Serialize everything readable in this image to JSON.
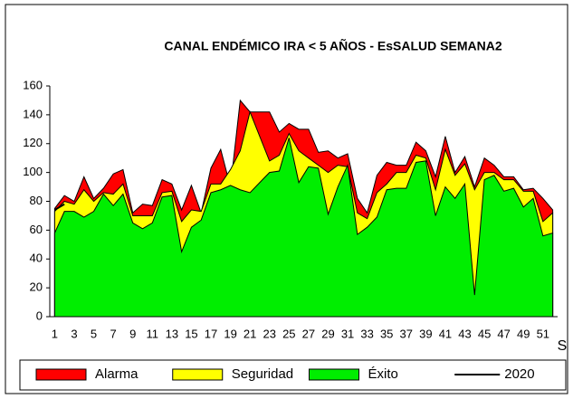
{
  "chart_data": {
    "type": "area",
    "title": "CANAL ENDÉMICO IRA < 5 AÑOS - EsSALUD SEMANA2",
    "x_label": "S",
    "categories": [
      1,
      null,
      3,
      null,
      5,
      null,
      7,
      null,
      9,
      null,
      11,
      null,
      13,
      null,
      15,
      null,
      17,
      null,
      19,
      null,
      21,
      null,
      23,
      null,
      25,
      null,
      27,
      null,
      29,
      null,
      31,
      null,
      33,
      null,
      35,
      null,
      37,
      null,
      39,
      null,
      41,
      null,
      43,
      null,
      45,
      null,
      47,
      null,
      49,
      null,
      51,
      null
    ],
    "ylim": [
      0,
      160
    ],
    "yticks": [
      0,
      20,
      40,
      60,
      80,
      100,
      120,
      140,
      160
    ],
    "legend": "bottom",
    "series": [
      {
        "name": "Alarma",
        "color": "#ff0000",
        "values": [
          75,
          84,
          80,
          97,
          82,
          89,
          99,
          102,
          72,
          78,
          77,
          95,
          92,
          74,
          91,
          72,
          103,
          116,
          90,
          150,
          142,
          142,
          142,
          128,
          134,
          130,
          130,
          114,
          115,
          110,
          113,
          82,
          72,
          98,
          107,
          105,
          105,
          121,
          115,
          97,
          125,
          100,
          111,
          90,
          110,
          105,
          97,
          97,
          88,
          89,
          82,
          74
        ]
      },
      {
        "name": "Seguridad",
        "color": "#ffff00",
        "values": [
          73,
          80,
          78,
          88,
          80,
          86,
          85,
          92,
          70,
          70,
          70,
          86,
          87,
          66,
          74,
          73,
          92,
          92,
          102,
          115,
          142,
          125,
          108,
          112,
          127,
          115,
          110,
          105,
          100,
          105,
          104,
          72,
          68,
          86,
          92,
          100,
          100,
          112,
          110,
          88,
          116,
          98,
          106,
          88,
          100,
          100,
          95,
          95,
          87,
          87,
          66,
          72
        ]
      },
      {
        "name": "Éxito",
        "color": "#00ee00",
        "values": [
          58,
          73,
          73,
          69,
          73,
          85,
          77,
          85,
          65,
          61,
          65,
          83,
          84,
          45,
          62,
          67,
          86,
          88,
          91,
          88,
          86,
          93,
          100,
          101,
          124,
          93,
          104,
          103,
          71,
          90,
          105,
          57,
          62,
          69,
          88,
          89,
          89,
          107,
          108,
          70,
          90,
          82,
          92,
          15,
          95,
          98,
          87,
          89,
          76,
          82,
          56,
          58
        ]
      },
      {
        "name": "2020",
        "color": "#000000",
        "line": true,
        "values": [
          74,
          78,
          null,
          null,
          null,
          null,
          null,
          null,
          null,
          null,
          null,
          null,
          null,
          null,
          null,
          null,
          null,
          null,
          null,
          null,
          null,
          null,
          null,
          null,
          null,
          null,
          null,
          null,
          null,
          null,
          null,
          null,
          null,
          null,
          null,
          null,
          null,
          null,
          null,
          null,
          null,
          null,
          null,
          null,
          null,
          null,
          null,
          null,
          null,
          null,
          null,
          null
        ]
      }
    ]
  }
}
